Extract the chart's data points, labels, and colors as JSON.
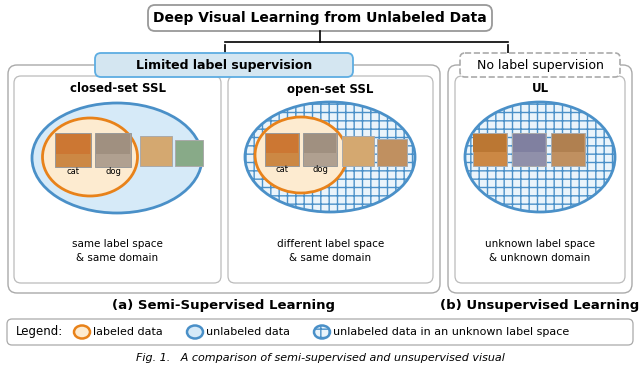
{
  "title": "Deep Visual Learning from Unlabeled Data",
  "left_box_title": "Limited label supervision",
  "right_box_title": "No label supervision",
  "ssl_label": "(a) Semi-Supervised Learning",
  "ul_label": "(b) Unsupervised Learning",
  "closed_set_title": "closed-set SSL",
  "open_set_title": "open-set SSL",
  "ul_title": "UL",
  "closed_set_desc": "same label space\n& same domain",
  "open_set_desc": "different label space\n& same domain",
  "ul_desc": "unknown label space\n& unknown domain",
  "legend_text": "Legend:",
  "legend_orange": "labeled data",
  "legend_blue": "unlabeled data",
  "legend_hatched": "unlabeled data in an unknown label space",
  "orange_color": "#E8821A",
  "blue_color": "#4A90C8",
  "orange_fill": "#FDEBD0",
  "blue_fill": "#D6EAF8",
  "hatch_fill": "#EAF4FB",
  "bg_color": "#FFFFFF"
}
